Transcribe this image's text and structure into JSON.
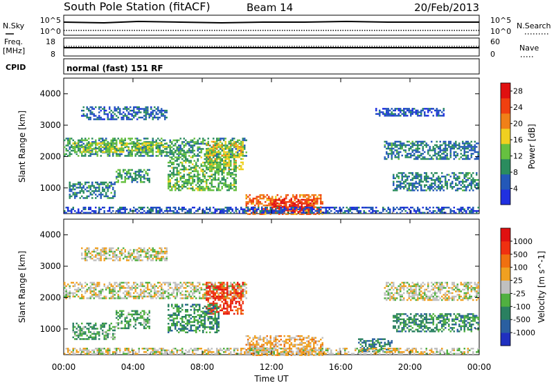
{
  "header": {
    "title": "South Pole Station (fitACF)",
    "beam": "Beam 14",
    "date": "20/Feb/2013"
  },
  "summary": {
    "nsky_label": "N.Sky",
    "nsearch_label": "N.Search",
    "nsky_ticks": [
      "10^5",
      "10^0"
    ],
    "nsearch_ticks": [
      "10^5",
      "10^0"
    ],
    "freq_label_top": "Freq.",
    "freq_label_unit": "[MHz]",
    "freq_ticks": [
      "18",
      "8"
    ],
    "nave_label": "Nave",
    "nave_ticks": [
      "60",
      "0"
    ],
    "cpid_label": "CPID",
    "cpid_value": "normal (fast) 151 RF"
  },
  "chart_data": [
    {
      "type": "heatmap",
      "title": "",
      "xlabel": "",
      "ylabel": "Slant Range [km]",
      "x_ticks": [
        "00:00",
        "04:00",
        "08:00",
        "12:00",
        "16:00",
        "20:00",
        "00:00"
      ],
      "y_ticks": [
        "1000",
        "2000",
        "3000",
        "4000"
      ],
      "xlim_hours": [
        0,
        24
      ],
      "ylim_km": [
        180,
        4500
      ],
      "colorbar": {
        "label": "Power [dB]",
        "tick_labels": [
          "4",
          "8",
          "12",
          "16",
          "20",
          "24",
          "28"
        ],
        "range": [
          0,
          30
        ],
        "colors": [
          "#2030e0",
          "#2358b8",
          "#2a8c5e",
          "#66c040",
          "#f0d020",
          "#f08018",
          "#f04010",
          "#e01010"
        ]
      },
      "echo_regions": [
        {
          "t0": 0.0,
          "t1": 10.6,
          "r0": 2000,
          "r1": 2600,
          "level": 10
        },
        {
          "t0": 0.5,
          "t1": 6.0,
          "r0": 2150,
          "r1": 2450,
          "level": 14
        },
        {
          "t0": 8.2,
          "t1": 10.4,
          "r0": 1600,
          "r1": 2500,
          "level": 16
        },
        {
          "t0": 6.0,
          "t1": 10.0,
          "r0": 900,
          "r1": 2000,
          "level": 12
        },
        {
          "t0": 3.0,
          "t1": 5.0,
          "r0": 1200,
          "r1": 1600,
          "level": 10
        },
        {
          "t0": 0.3,
          "t1": 3.0,
          "r0": 700,
          "r1": 1200,
          "level": 8
        },
        {
          "t0": 10.5,
          "t1": 15.0,
          "r0": 180,
          "r1": 800,
          "level": 22
        },
        {
          "t0": 12.0,
          "t1": 14.5,
          "r0": 250,
          "r1": 650,
          "level": 28
        },
        {
          "t0": 18.5,
          "t1": 24.0,
          "r0": 1900,
          "r1": 2500,
          "level": 8
        },
        {
          "t0": 19.0,
          "t1": 24.0,
          "r0": 900,
          "r1": 1500,
          "level": 8
        },
        {
          "t0": 0.0,
          "t1": 24.0,
          "r0": 180,
          "r1": 400,
          "level": 5
        },
        {
          "t0": 1.0,
          "t1": 6.0,
          "r0": 3200,
          "r1": 3600,
          "level": 6
        },
        {
          "t0": 18.0,
          "t1": 22.0,
          "r0": 3300,
          "r1": 3550,
          "level": 5
        }
      ]
    },
    {
      "type": "heatmap",
      "title": "",
      "xlabel": "Time UT",
      "ylabel": "Slant Range [km]",
      "x_ticks": [
        "00:00",
        "04:00",
        "08:00",
        "12:00",
        "16:00",
        "20:00",
        "00:00"
      ],
      "y_ticks": [
        "1000",
        "2000",
        "3000",
        "4000"
      ],
      "xlim_hours": [
        0,
        24
      ],
      "ylim_km": [
        180,
        4500
      ],
      "colorbar": {
        "label": "Velocity [m s^-1]",
        "tick_labels": [
          "1000",
          "500",
          "100",
          "25",
          "-25",
          "-100",
          "-500",
          "-1000"
        ],
        "range": [
          -1000,
          1000
        ],
        "colors": [
          "#2030c0",
          "#2a5fa0",
          "#2a8060",
          "#50b040",
          "#c0c0c0",
          "#f0a020",
          "#f07010",
          "#f03010",
          "#e01010"
        ]
      },
      "echo_regions": [
        {
          "t0": 0.0,
          "t1": 10.6,
          "r0": 2000,
          "r1": 2500,
          "level": 0
        },
        {
          "t0": 8.2,
          "t1": 10.4,
          "r0": 1500,
          "r1": 2500,
          "level": 700
        },
        {
          "t0": 6.0,
          "t1": 9.0,
          "r0": 900,
          "r1": 1800,
          "level": -400
        },
        {
          "t0": 3.0,
          "t1": 5.0,
          "r0": 1000,
          "r1": 1600,
          "level": -300
        },
        {
          "t0": 0.5,
          "t1": 3.0,
          "r0": 700,
          "r1": 1200,
          "level": -300
        },
        {
          "t0": 10.5,
          "t1": 15.0,
          "r0": 180,
          "r1": 800,
          "level": 200
        },
        {
          "t0": 18.5,
          "t1": 24.0,
          "r0": 1900,
          "r1": 2500,
          "level": 0
        },
        {
          "t0": 19.0,
          "t1": 24.0,
          "r0": 900,
          "r1": 1500,
          "level": -400
        },
        {
          "t0": 17.0,
          "t1": 19.0,
          "r0": 300,
          "r1": 700,
          "level": -500
        },
        {
          "t0": 0.0,
          "t1": 24.0,
          "r0": 180,
          "r1": 400,
          "level": 50
        },
        {
          "t0": 1.0,
          "t1": 6.0,
          "r0": 3200,
          "r1": 3600,
          "level": 0
        }
      ]
    }
  ]
}
